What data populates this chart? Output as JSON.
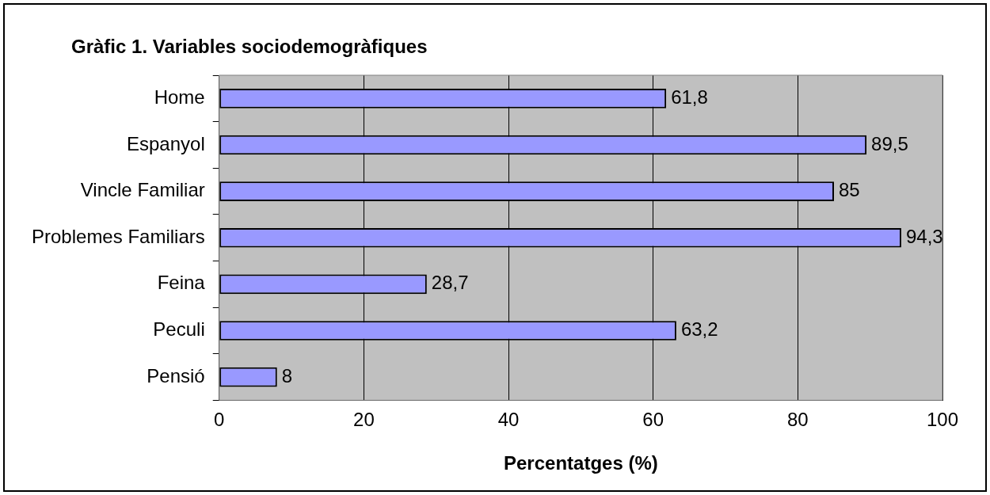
{
  "chart_data": {
    "type": "bar",
    "orientation": "horizontal",
    "title": "Gràfic 1. Variables sociodemogràfiques",
    "xlabel": "Percentatges (%)",
    "categories": [
      "Home",
      "Espanyol",
      "Vincle Familiar",
      "Problemes Familiars",
      "Feina",
      "Peculi",
      "Pensió"
    ],
    "values": [
      61.8,
      89.5,
      85,
      94.3,
      28.7,
      63.2,
      8
    ],
    "value_labels": [
      "61,8",
      "89,5",
      "85",
      "94,3",
      "28,7",
      "63,2",
      "8"
    ],
    "color": "#9999ff",
    "xlim": [
      0,
      100
    ],
    "xticks": [
      0,
      20,
      40,
      60,
      80,
      100
    ],
    "grid": "x",
    "legend": false
  }
}
